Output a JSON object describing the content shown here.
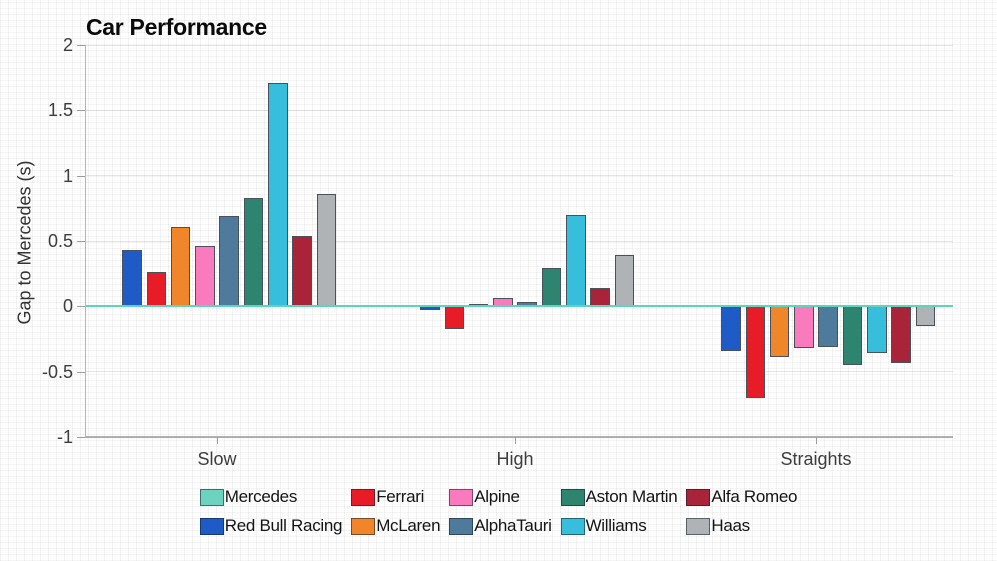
{
  "chart_data": {
    "type": "bar",
    "title": "Car Performance",
    "xlabel": "",
    "ylabel": "Gap to Mercedes (s)",
    "categories": [
      "Slow",
      "High",
      "Straights"
    ],
    "series": [
      {
        "name": "Mercedes",
        "color": "#6cd3bf",
        "values": [
          0,
          0,
          0
        ]
      },
      {
        "name": "Red Bull Racing",
        "color": "#1e5bc6",
        "values": [
          0.43,
          -0.03,
          -0.34
        ]
      },
      {
        "name": "Ferrari",
        "color": "#e81c26",
        "values": [
          0.26,
          -0.17,
          -0.7
        ]
      },
      {
        "name": "McLaren",
        "color": "#f08629",
        "values": [
          0.61,
          0.02,
          -0.39
        ]
      },
      {
        "name": "Alpine",
        "color": "#f97bbd",
        "values": [
          0.46,
          0.06,
          -0.32
        ]
      },
      {
        "name": "AlphaTauri",
        "color": "#4e7a9b",
        "values": [
          0.69,
          0.03,
          -0.31
        ]
      },
      {
        "name": "Aston Martin",
        "color": "#2d8570",
        "values": [
          0.83,
          0.29,
          -0.45
        ]
      },
      {
        "name": "Williams",
        "color": "#37bedd",
        "values": [
          1.71,
          0.7,
          -0.36
        ]
      },
      {
        "name": "Alfa Romeo",
        "color": "#a92339",
        "values": [
          0.54,
          0.14,
          -0.43
        ]
      },
      {
        "name": "Haas",
        "color": "#b0b3b5",
        "values": [
          0.86,
          0.39,
          -0.15
        ]
      }
    ],
    "ylim": [
      -1,
      2
    ],
    "yticks": [
      2,
      1.5,
      1,
      0.5,
      0,
      -0.5,
      -1
    ],
    "ytick_labels": [
      "2",
      "1.5",
      "1",
      "0.5",
      "0",
      "-0.5",
      "-1"
    ],
    "grid": true,
    "zero_line_color": "#5ed4bc",
    "legend_position": "bottom",
    "legend_rows": 2
  }
}
